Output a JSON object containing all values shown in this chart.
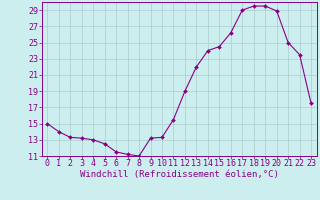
{
  "x": [
    0,
    1,
    2,
    3,
    4,
    5,
    6,
    7,
    8,
    9,
    10,
    11,
    12,
    13,
    14,
    15,
    16,
    17,
    18,
    19,
    20,
    21,
    22,
    23
  ],
  "y_data": [
    15,
    14,
    13.3,
    13.2,
    13,
    12.5,
    11.5,
    11.2,
    11,
    13.2,
    13.3,
    15.5,
    19,
    22,
    24,
    24.5,
    26.2,
    29,
    29.5,
    29.5,
    28.9,
    25,
    23.5,
    17.5
  ],
  "line_color": "#880088",
  "marker_color": "#880088",
  "bg_color": "#cceeee",
  "grid_color": "#aacccc",
  "xlabel": "Windchill (Refroidissement éolien,°C)",
  "ylim": [
    11,
    30
  ],
  "xlim": [
    -0.5,
    23.5
  ],
  "yticks": [
    11,
    13,
    15,
    17,
    19,
    21,
    23,
    25,
    27,
    29
  ],
  "xticks": [
    0,
    1,
    2,
    3,
    4,
    5,
    6,
    7,
    8,
    9,
    10,
    11,
    12,
    13,
    14,
    15,
    16,
    17,
    18,
    19,
    20,
    21,
    22,
    23
  ],
  "font_color": "#880088",
  "label_fontsize": 6.5,
  "tick_fontsize": 6
}
